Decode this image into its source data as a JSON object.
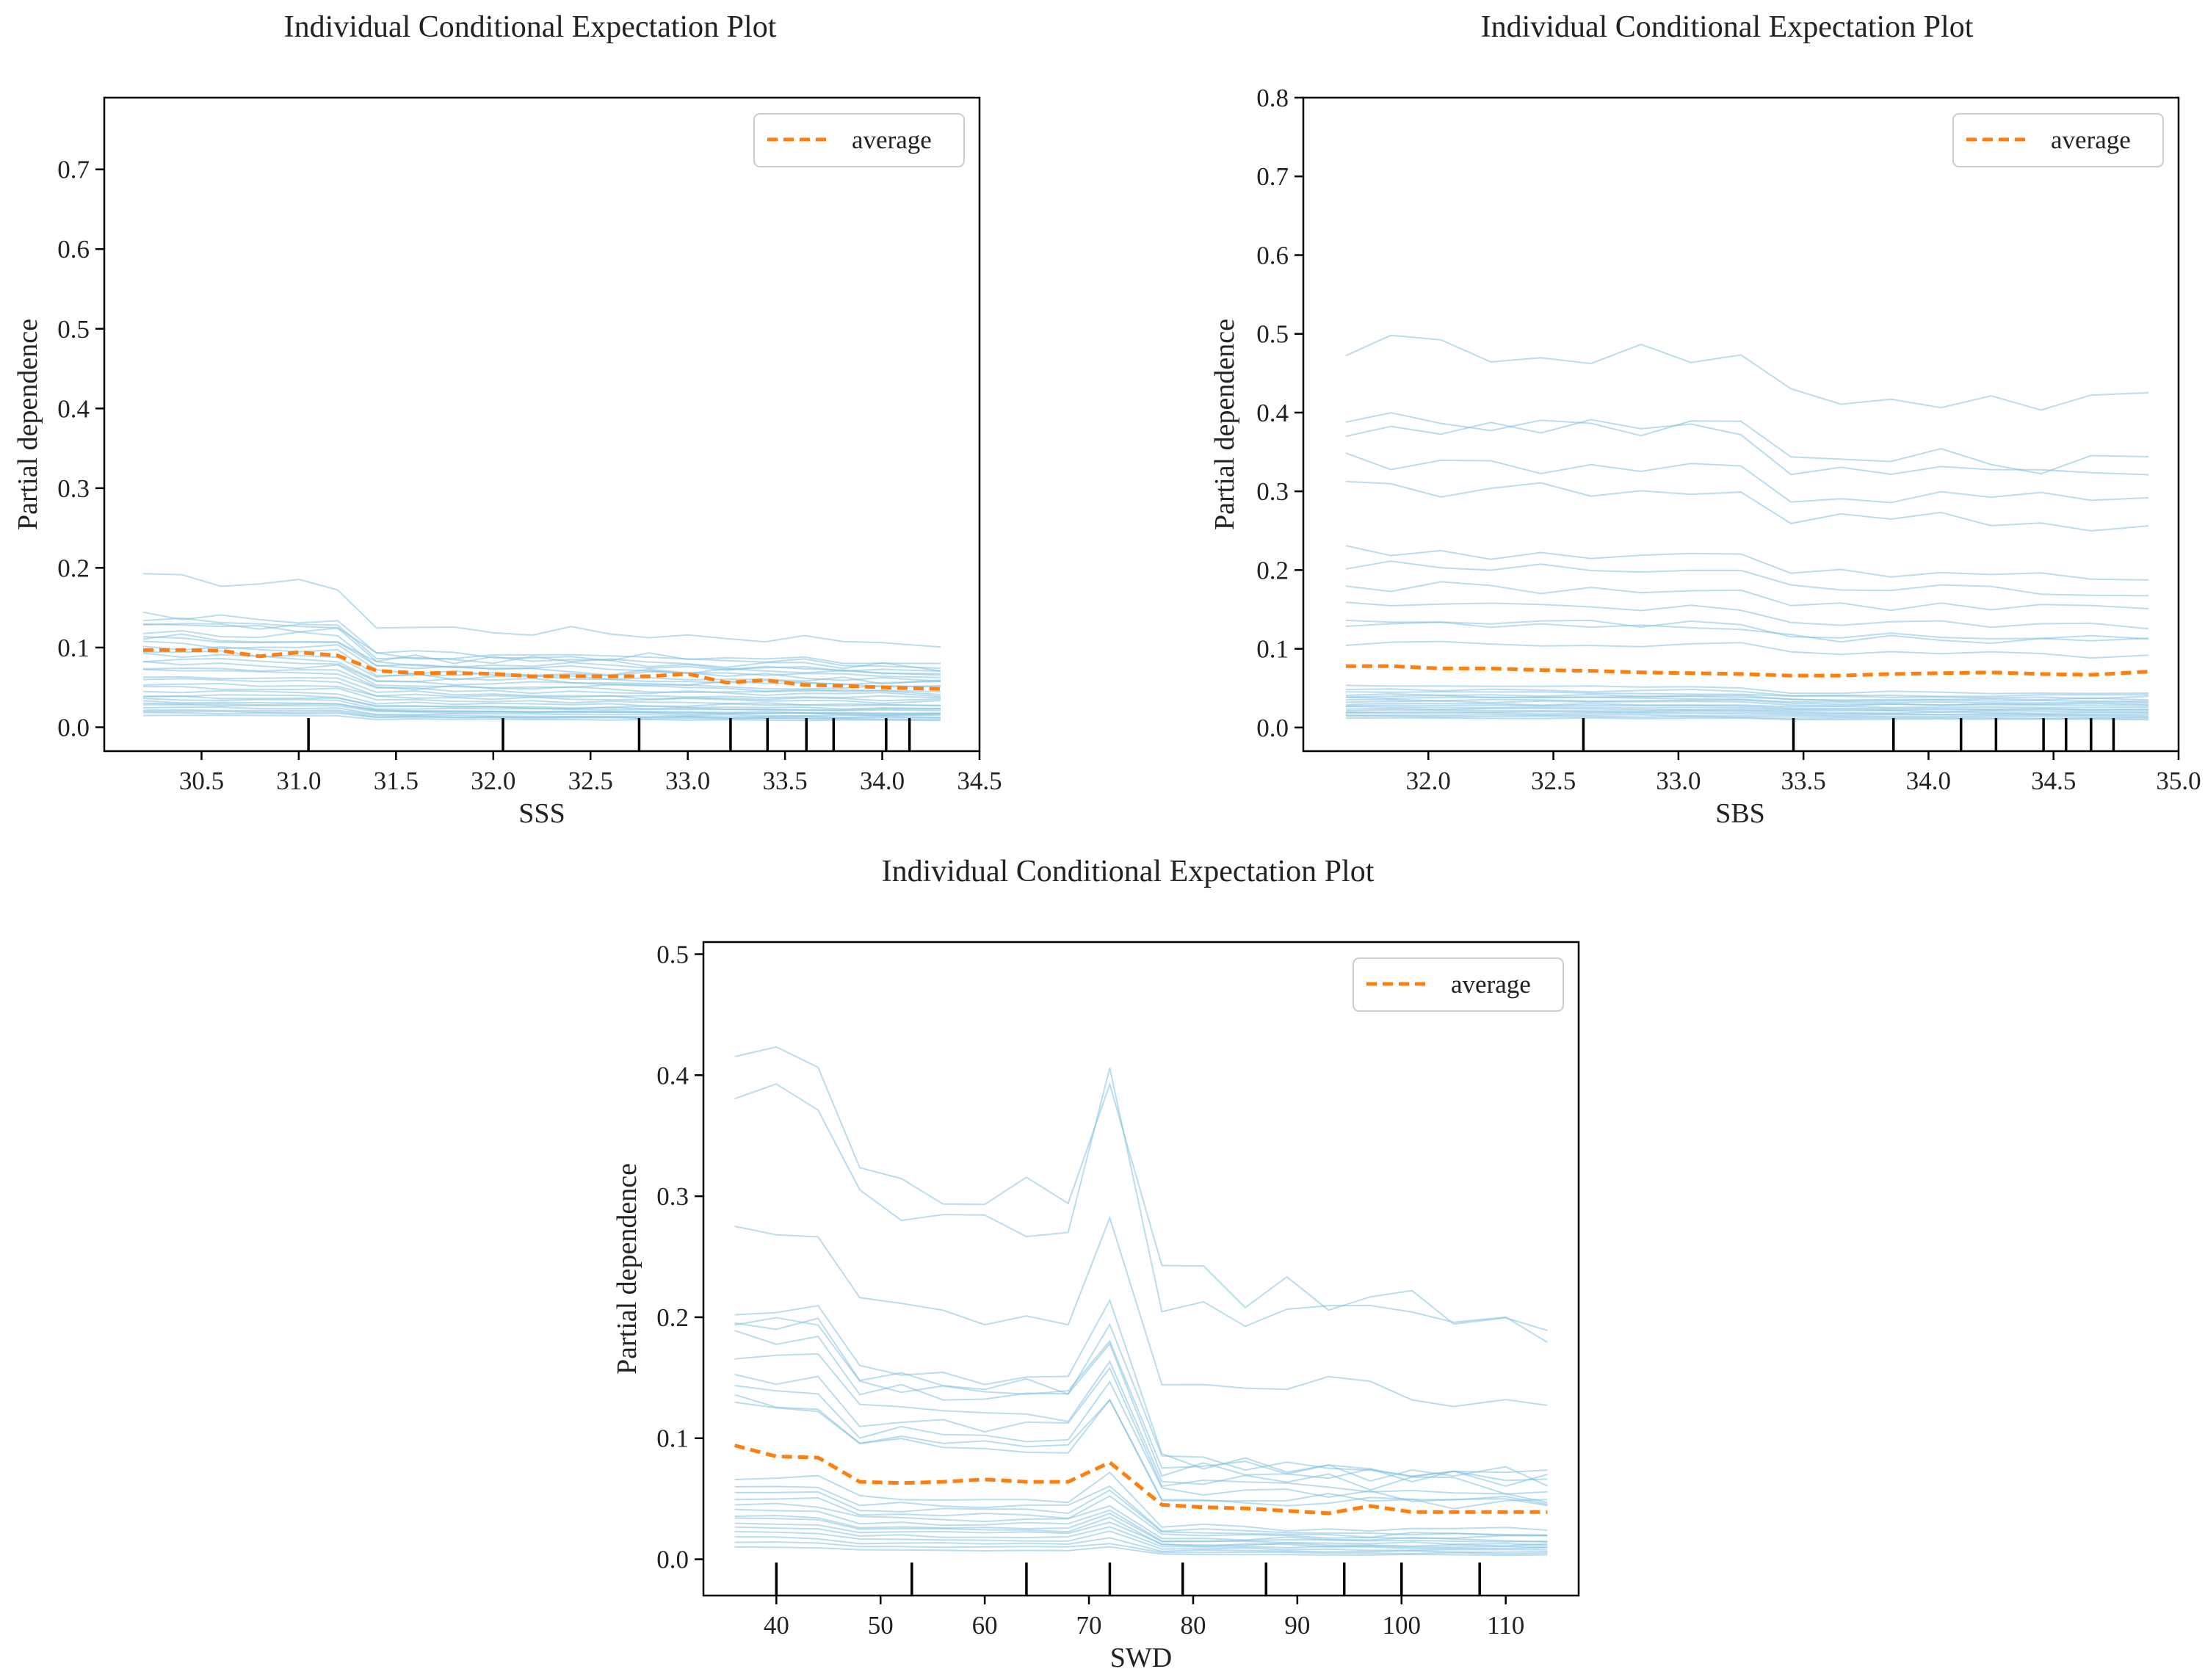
{
  "colors": {
    "ice": "#7fbfe0",
    "average": "#ff7f0e",
    "axis": "#000000",
    "rug": "#000000"
  },
  "chart_data": [
    {
      "type": "line",
      "title": "Individual Conditional Expectation Plot",
      "xlabel": "SSS",
      "ylabel": "Partial dependence",
      "xlim": [
        30.0,
        34.5
      ],
      "ylim": [
        -0.03,
        0.79
      ],
      "xticks": [
        30.5,
        31.0,
        31.5,
        32.0,
        32.5,
        33.0,
        33.5,
        34.0,
        34.5
      ],
      "yticks": [
        0.0,
        0.1,
        0.2,
        0.3,
        0.4,
        0.5,
        0.6,
        0.7
      ],
      "xtick_labels": [
        "30.5",
        "31.0",
        "31.5",
        "32.0",
        "32.5",
        "33.0",
        "33.5",
        "34.0",
        "34.5"
      ],
      "ytick_labels": [
        "0.0",
        "0.1",
        "0.2",
        "0.3",
        "0.4",
        "0.5",
        "0.6",
        "0.7"
      ],
      "legend": {
        "label": "average",
        "position": "upper right"
      },
      "x": [
        30.2,
        30.4,
        30.6,
        30.8,
        31.0,
        31.2,
        31.4,
        31.6,
        31.8,
        32.0,
        32.2,
        32.4,
        32.6,
        32.8,
        33.0,
        33.2,
        33.4,
        33.6,
        33.8,
        34.0,
        34.3
      ],
      "average": [
        0.097,
        0.097,
        0.096,
        0.089,
        0.094,
        0.09,
        0.071,
        0.068,
        0.068,
        0.067,
        0.064,
        0.064,
        0.064,
        0.064,
        0.067,
        0.056,
        0.059,
        0.053,
        0.052,
        0.05,
        0.048
      ],
      "ice_base": [
        0.187,
        0.14,
        0.135,
        0.13,
        0.128,
        0.12,
        0.115,
        0.11,
        0.105,
        0.1,
        0.095,
        0.09,
        0.085,
        0.08,
        0.075,
        0.07,
        0.065,
        0.06,
        0.055,
        0.05,
        0.045,
        0.04,
        0.038,
        0.035,
        0.032,
        0.03,
        0.028,
        0.025,
        0.022,
        0.02,
        0.018,
        0.015
      ],
      "ice_drop_x": 31.4,
      "ice_drop_factor": 0.72,
      "ice_end_factor": 0.6,
      "rug": [
        31.05,
        32.05,
        32.75,
        33.22,
        33.41,
        33.61,
        33.75,
        34.02,
        34.14
      ]
    },
    {
      "type": "line",
      "title": "Individual Conditional Expectation Plot",
      "xlabel": "SBS",
      "ylabel": "Partial dependence",
      "xlim": [
        31.5,
        35.0
      ],
      "ylim": [
        -0.03,
        0.8
      ],
      "xticks": [
        32.0,
        32.5,
        33.0,
        33.5,
        34.0,
        34.5,
        35.0
      ],
      "yticks": [
        0.0,
        0.1,
        0.2,
        0.3,
        0.4,
        0.5,
        0.6,
        0.7,
        0.8
      ],
      "xtick_labels": [
        "32.0",
        "32.5",
        "33.0",
        "33.5",
        "34.0",
        "34.5",
        "35.0"
      ],
      "ytick_labels": [
        "0.0",
        "0.1",
        "0.2",
        "0.3",
        "0.4",
        "0.5",
        "0.6",
        "0.7",
        "0.8"
      ],
      "legend": {
        "label": "average",
        "position": "upper right"
      },
      "x": [
        31.67,
        31.85,
        32.05,
        32.25,
        32.45,
        32.65,
        32.85,
        33.05,
        33.25,
        33.45,
        33.65,
        33.85,
        34.05,
        34.25,
        34.45,
        34.65,
        34.88
      ],
      "average": [
        0.078,
        0.078,
        0.075,
        0.075,
        0.073,
        0.072,
        0.07,
        0.069,
        0.068,
        0.066,
        0.066,
        0.068,
        0.069,
        0.07,
        0.068,
        0.067,
        0.071
      ],
      "ice_base": [
        0.487,
        0.395,
        0.385,
        0.34,
        0.305,
        0.225,
        0.205,
        0.18,
        0.155,
        0.135,
        0.13,
        0.108,
        0.052,
        0.048,
        0.045,
        0.042,
        0.04,
        0.038,
        0.035,
        0.033,
        0.03,
        0.028,
        0.026,
        0.024,
        0.022,
        0.02,
        0.018,
        0.016,
        0.014,
        0.012
      ],
      "ice_drop_x": 33.3,
      "ice_drop_factor": 0.9,
      "ice_end_factor": 0.88,
      "rug": [
        32.62,
        33.46,
        33.86,
        34.13,
        34.27,
        34.46,
        34.55,
        34.65,
        34.74
      ]
    },
    {
      "type": "line",
      "title": "Individual Conditional Expectation Plot",
      "xlabel": "SWD",
      "ylabel": "Partial dependence",
      "xlim": [
        33,
        117
      ],
      "ylim": [
        -0.03,
        0.51
      ],
      "xticks": [
        40,
        50,
        60,
        70,
        80,
        90,
        100,
        110
      ],
      "yticks": [
        0.0,
        0.1,
        0.2,
        0.3,
        0.4,
        0.5
      ],
      "xtick_labels": [
        "40",
        "50",
        "60",
        "70",
        "80",
        "90",
        "100",
        "110"
      ],
      "ytick_labels": [
        "0.0",
        "0.1",
        "0.2",
        "0.3",
        "0.4",
        "0.5"
      ],
      "legend": {
        "label": "average",
        "position": "upper right"
      },
      "x": [
        36,
        40,
        44,
        48,
        52,
        56,
        60,
        64,
        68,
        72,
        77,
        81,
        85,
        89,
        93,
        97,
        101,
        105,
        110,
        114
      ],
      "average": [
        0.094,
        0.085,
        0.084,
        0.064,
        0.063,
        0.064,
        0.066,
        0.064,
        0.064,
        0.08,
        0.045,
        0.043,
        0.042,
        0.04,
        0.038,
        0.044,
        0.039,
        0.039,
        0.039,
        0.039
      ],
      "ice_base": [
        0.42,
        0.39,
        0.275,
        0.207,
        0.2,
        0.195,
        0.185,
        0.17,
        0.152,
        0.14,
        0.132,
        0.128,
        0.068,
        0.062,
        0.055,
        0.05,
        0.045,
        0.04,
        0.036,
        0.033,
        0.03,
        0.026,
        0.022,
        0.018,
        0.014,
        0.01
      ],
      "ice_drop_x": 48,
      "ice_drop_factor": 0.78,
      "ice_spike_x": 72,
      "ice_drop2_x": 77,
      "ice_end_factor": 0.55,
      "rug": [
        40,
        53,
        64,
        72,
        79,
        87,
        94.5,
        100,
        107.5
      ]
    }
  ]
}
